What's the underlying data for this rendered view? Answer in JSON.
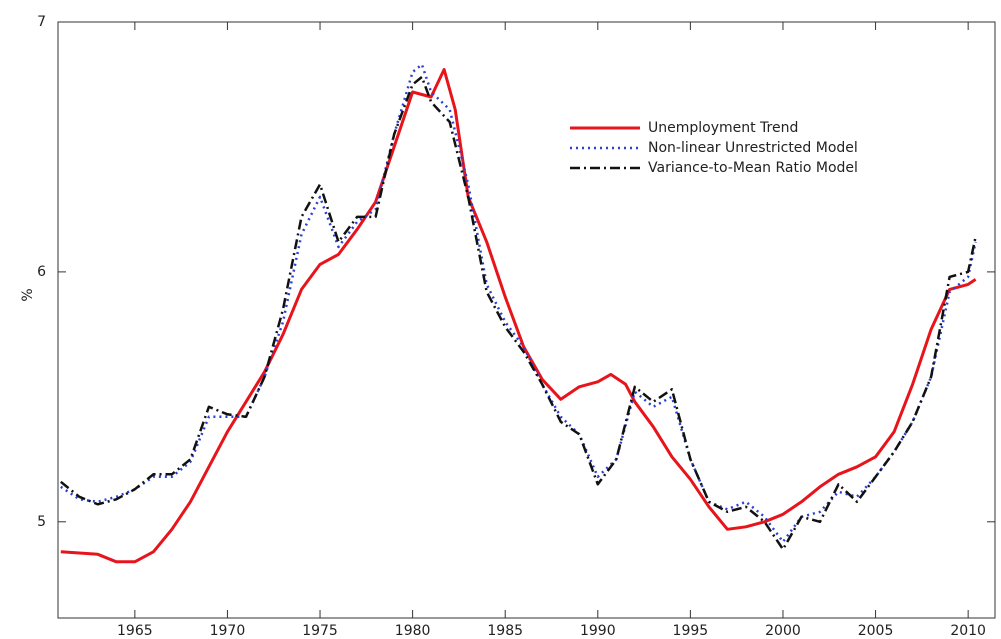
{
  "chart_data": {
    "type": "line",
    "ylabel": "%",
    "xlim": [
      1960.85,
      2011.45
    ],
    "ylim": [
      4.615,
      7
    ],
    "xticks": [
      1965,
      1970,
      1975,
      1980,
      1985,
      1990,
      1995,
      2000,
      2005,
      2010
    ],
    "yticks": [
      5,
      6,
      7
    ],
    "grid": false,
    "legend": "upper-right",
    "series": [
      {
        "name": "Unemployment Trend",
        "color": "#e8141b",
        "style": "solid",
        "x": [
          1961,
          1963,
          1964,
          1965,
          1966,
          1967,
          1968,
          1969,
          1970,
          1971,
          1972,
          1973,
          1974,
          1975,
          1976,
          1977,
          1978,
          1979,
          1980,
          1981,
          1981.7,
          1982.3,
          1983,
          1984,
          1985,
          1986,
          1987,
          1988,
          1989,
          1990,
          1990.7,
          1991.5,
          1992,
          1993,
          1994,
          1995,
          1996,
          1997,
          1998,
          1999,
          2000,
          2001,
          2002,
          2003,
          2004,
          2005,
          2006,
          2007,
          2008,
          2009,
          2010,
          2010.4
        ],
        "values": [
          4.88,
          4.87,
          4.84,
          4.84,
          4.88,
          4.97,
          5.08,
          5.22,
          5.36,
          5.48,
          5.6,
          5.75,
          5.93,
          6.03,
          6.07,
          6.17,
          6.28,
          6.5,
          6.72,
          6.7,
          6.81,
          6.65,
          6.3,
          6.12,
          5.9,
          5.7,
          5.57,
          5.49,
          5.54,
          5.56,
          5.59,
          5.55,
          5.48,
          5.38,
          5.26,
          5.17,
          5.06,
          4.97,
          4.98,
          5.0,
          5.03,
          5.08,
          5.14,
          5.19,
          5.22,
          5.26,
          5.36,
          5.55,
          5.77,
          5.93,
          5.95,
          5.97
        ]
      },
      {
        "name": "Non-linear Unrestricted Model",
        "color": "#2b3fd6",
        "style": "dotted",
        "x": [
          1961,
          1962,
          1963,
          1964,
          1965,
          1966,
          1967,
          1968,
          1969,
          1970,
          1971,
          1972,
          1973,
          1974,
          1975,
          1976,
          1977,
          1978,
          1979,
          1980,
          1980.5,
          1981,
          1982,
          1983,
          1984,
          1985,
          1986,
          1987,
          1988,
          1989,
          1990,
          1991,
          1992,
          1993,
          1994,
          1995,
          1996,
          1997,
          1998,
          1999,
          2000,
          2001,
          2002,
          2003,
          2004,
          2005,
          2006,
          2007,
          2008,
          2009,
          2010,
          2010.4
        ],
        "values": [
          5.14,
          5.09,
          5.08,
          5.1,
          5.13,
          5.18,
          5.18,
          5.24,
          5.42,
          5.42,
          5.42,
          5.58,
          5.8,
          6.15,
          6.3,
          6.1,
          6.2,
          6.25,
          6.55,
          6.8,
          6.83,
          6.72,
          6.65,
          6.35,
          5.95,
          5.8,
          5.7,
          5.55,
          5.42,
          5.35,
          5.18,
          5.25,
          5.52,
          5.46,
          5.5,
          5.25,
          5.08,
          5.05,
          5.08,
          5.02,
          4.92,
          5.02,
          5.04,
          5.12,
          5.1,
          5.18,
          5.28,
          5.4,
          5.58,
          5.92,
          5.98,
          6.12
        ]
      },
      {
        "name": "Variance-to-Mean Ratio Model",
        "color": "#111111",
        "style": "dashdot",
        "x": [
          1961,
          1962,
          1963,
          1964,
          1965,
          1966,
          1967,
          1968,
          1969,
          1970,
          1971,
          1972,
          1973,
          1974,
          1975,
          1976,
          1977,
          1978,
          1979,
          1980,
          1980.5,
          1981,
          1982,
          1983,
          1984,
          1985,
          1986,
          1987,
          1988,
          1989,
          1990,
          1991,
          1992,
          1993,
          1994,
          1995,
          1996,
          1997,
          1998,
          1999,
          2000,
          2001,
          2002,
          2003,
          2004,
          2005,
          2006,
          2007,
          2008,
          2009,
          2010,
          2010.4
        ],
        "values": [
          5.16,
          5.1,
          5.07,
          5.09,
          5.13,
          5.19,
          5.19,
          5.25,
          5.46,
          5.43,
          5.42,
          5.58,
          5.85,
          6.22,
          6.35,
          6.12,
          6.22,
          6.22,
          6.55,
          6.75,
          6.78,
          6.68,
          6.6,
          6.3,
          5.92,
          5.78,
          5.68,
          5.55,
          5.4,
          5.35,
          5.15,
          5.25,
          5.54,
          5.48,
          5.53,
          5.25,
          5.08,
          5.04,
          5.06,
          5.0,
          4.89,
          5.02,
          5.0,
          5.15,
          5.08,
          5.18,
          5.28,
          5.4,
          5.58,
          5.98,
          6.0,
          6.14
        ]
      }
    ]
  }
}
